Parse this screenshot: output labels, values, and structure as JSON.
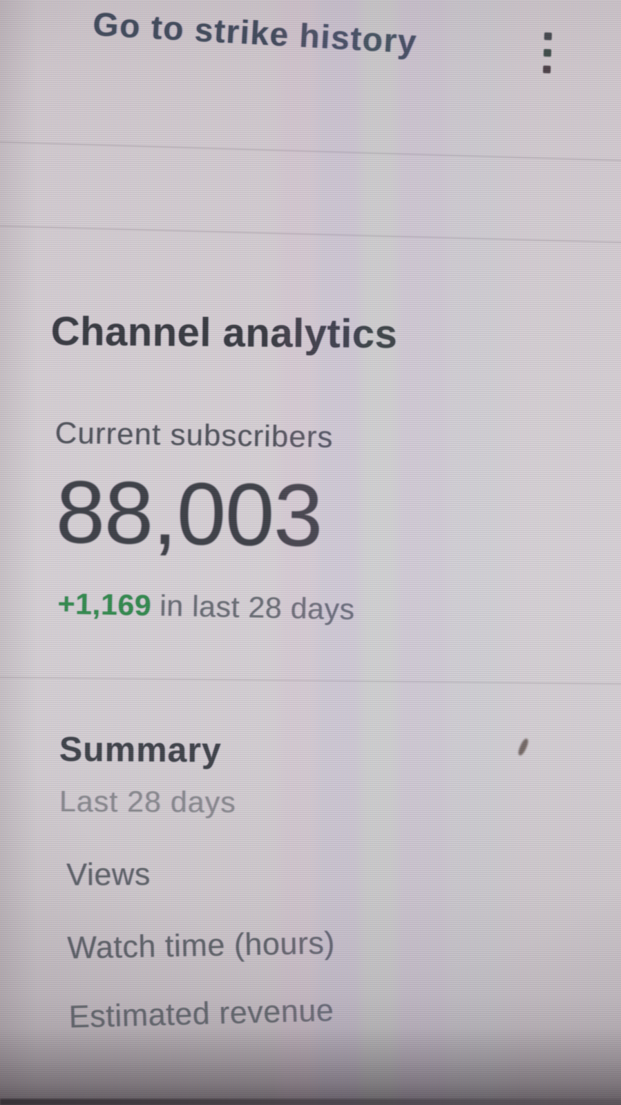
{
  "header": {
    "strike_link_label": "Go to strike history",
    "menu_icon": "kebab-menu-icon"
  },
  "analytics": {
    "title": "Channel analytics",
    "subscribers_label": "Current subscribers",
    "subscribers_count": "88,003",
    "delta_value": "+1,169",
    "delta_suffix": "in last 28 days"
  },
  "summary": {
    "title": "Summary",
    "period": "Last 28 days",
    "metrics": [
      {
        "label": "Views"
      },
      {
        "label": "Watch time (hours)"
      },
      {
        "label": "Estimated revenue"
      }
    ]
  },
  "colors": {
    "delta_green": "#2f8a4a",
    "text_dark": "#3b3e43",
    "text_gray": "#5c6165",
    "text_light_gray": "#88898c",
    "background": "#d5cfd2"
  }
}
